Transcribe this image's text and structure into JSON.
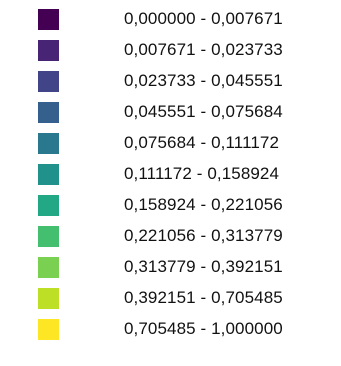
{
  "legend": {
    "items": [
      {
        "label": "0,000000 - 0,007671",
        "color": "#440154"
      },
      {
        "label": "0,007671 - 0,023733",
        "color": "#482475"
      },
      {
        "label": "0,023733 - 0,045551",
        "color": "#414487"
      },
      {
        "label": "0,045551 - 0,075684",
        "color": "#355f8d"
      },
      {
        "label": "0,075684 - 0,111172",
        "color": "#2a788e"
      },
      {
        "label": "0,111172 - 0,158924",
        "color": "#21918c"
      },
      {
        "label": "0,158924 - 0,221056",
        "color": "#22a884"
      },
      {
        "label": "0,221056 - 0,313779",
        "color": "#44bf70"
      },
      {
        "label": "0,313779 - 0,392151",
        "color": "#7ad151"
      },
      {
        "label": "0,392151 - 0,705485",
        "color": "#bddf26"
      },
      {
        "label": "0,705485 - 1,000000",
        "color": "#fde725"
      }
    ]
  }
}
